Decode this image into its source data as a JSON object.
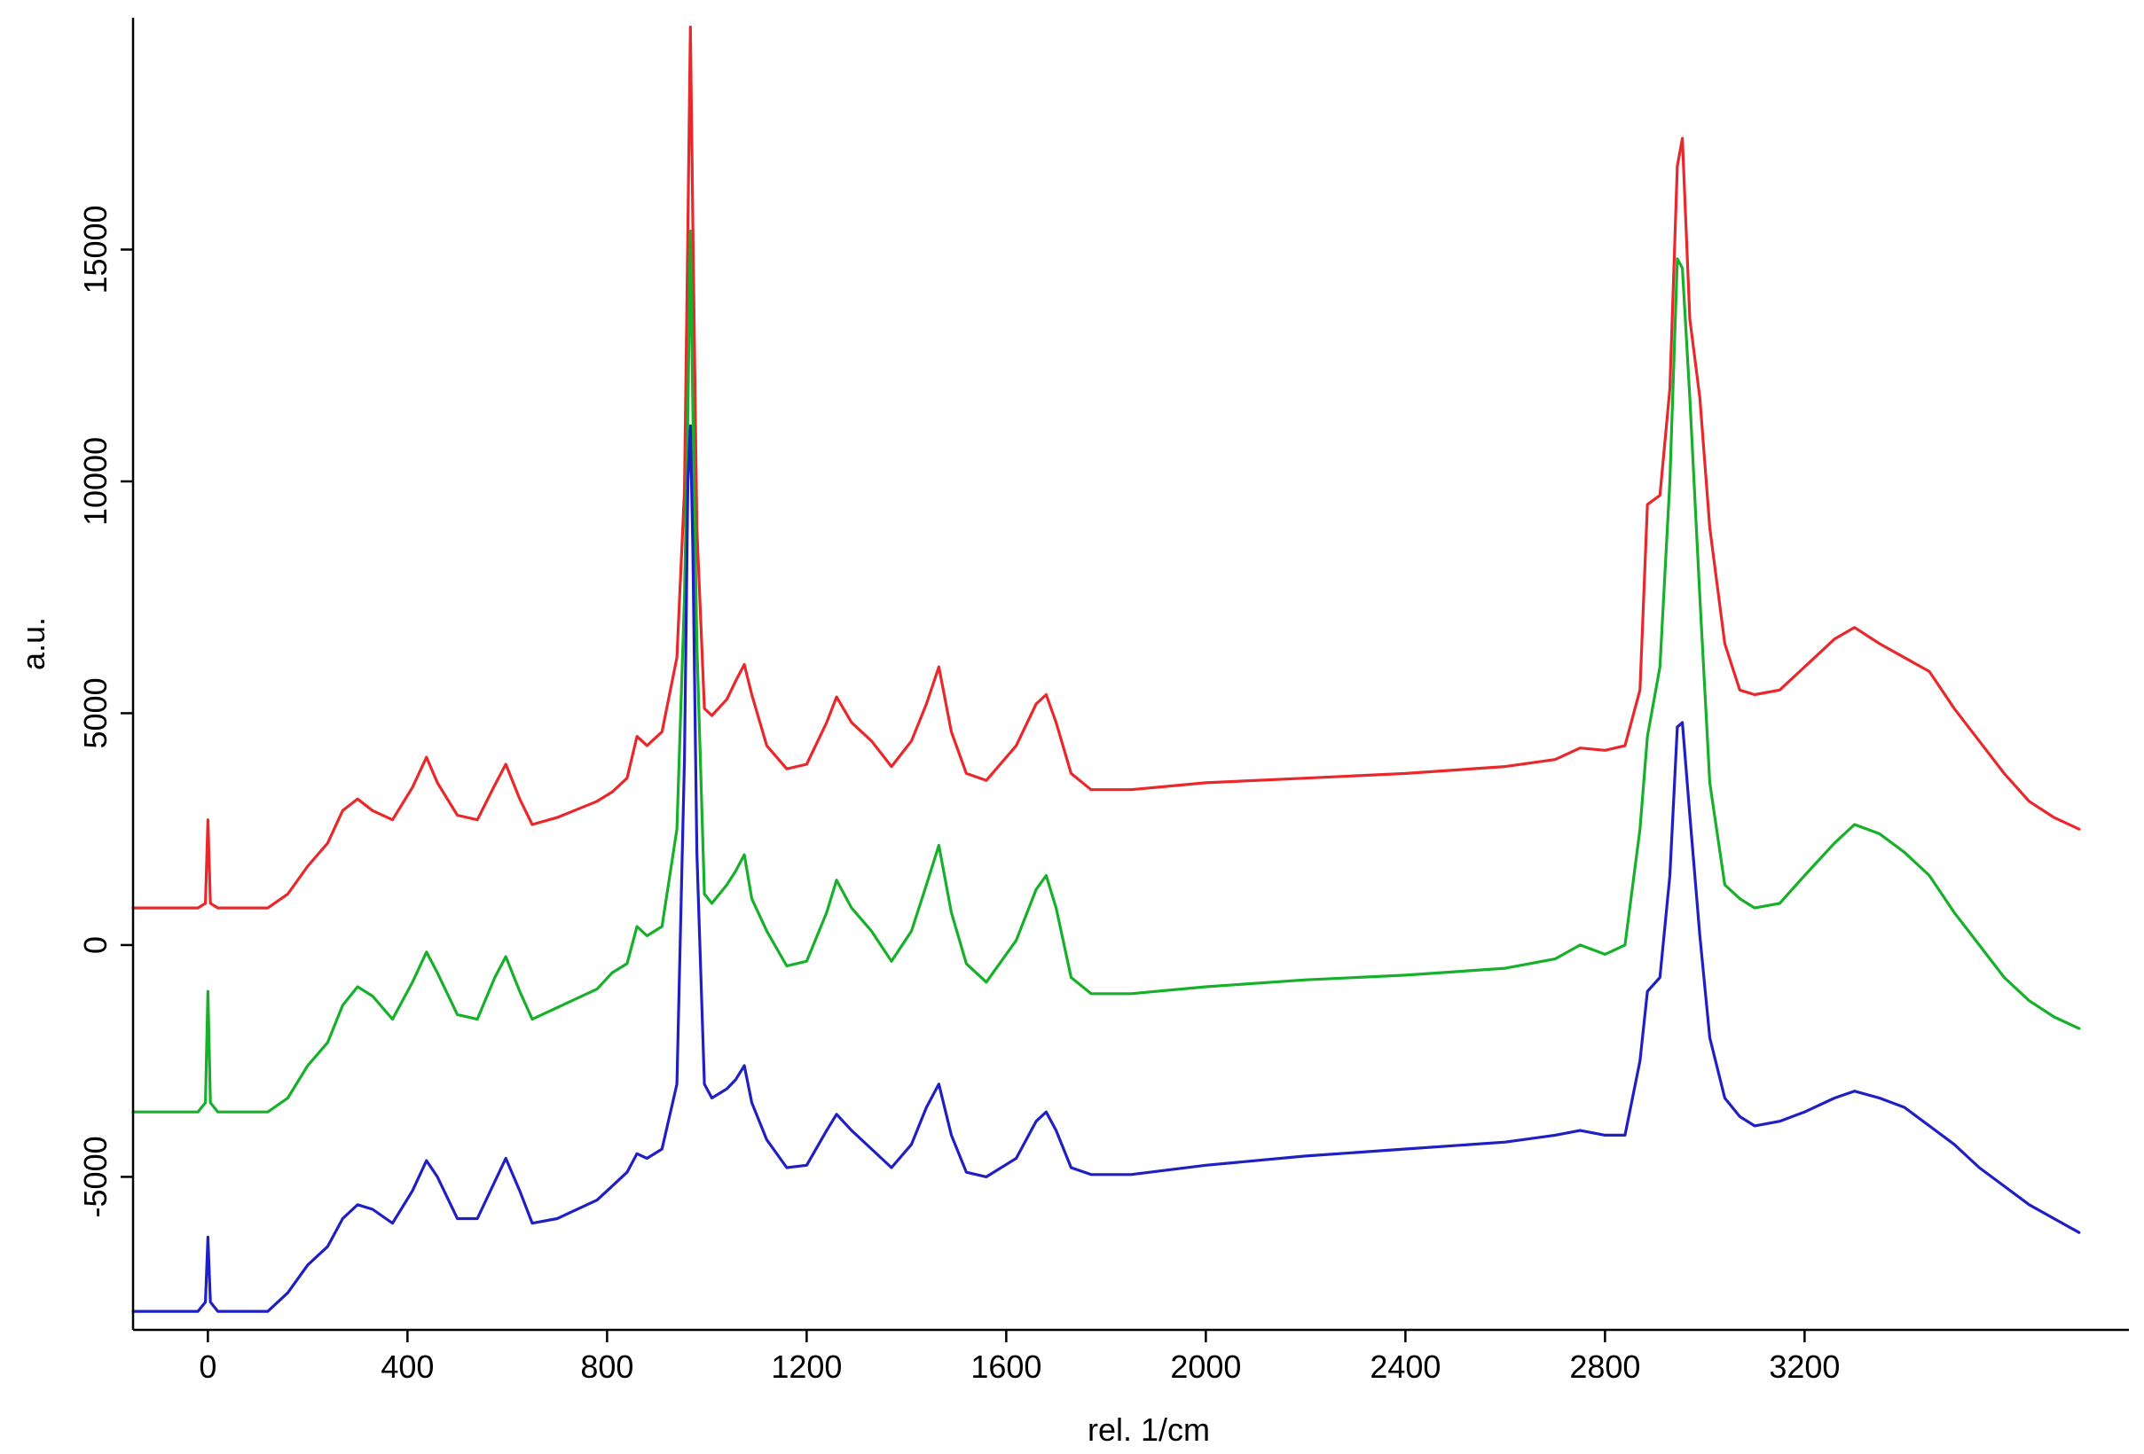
{
  "chart_data": {
    "type": "line",
    "title": "",
    "xlabel": "rel. 1/cm",
    "ylabel": "a.u.",
    "xlim": [
      -150,
      3850
    ],
    "ylim": [
      -8300,
      20000
    ],
    "x_ticks": [
      0,
      400,
      800,
      1200,
      1600,
      2000,
      2400,
      2800,
      3200
    ],
    "y_ticks": [
      -5000,
      0,
      5000,
      10000,
      15000
    ],
    "grid": false,
    "legend": "none",
    "series": [
      {
        "color": "#e8282b",
        "points": [
          [
            -150,
            800
          ],
          [
            -20,
            800
          ],
          [
            -5,
            900
          ],
          [
            0,
            2700
          ],
          [
            5,
            900
          ],
          [
            20,
            800
          ],
          [
            120,
            800
          ],
          [
            160,
            1100
          ],
          [
            200,
            1700
          ],
          [
            240,
            2200
          ],
          [
            270,
            2900
          ],
          [
            300,
            3150
          ],
          [
            330,
            2900
          ],
          [
            370,
            2700
          ],
          [
            410,
            3400
          ],
          [
            438,
            4050
          ],
          [
            460,
            3500
          ],
          [
            500,
            2800
          ],
          [
            540,
            2700
          ],
          [
            575,
            3450
          ],
          [
            597,
            3900
          ],
          [
            625,
            3150
          ],
          [
            650,
            2600
          ],
          [
            700,
            2750
          ],
          [
            780,
            3100
          ],
          [
            810,
            3300
          ],
          [
            840,
            3600
          ],
          [
            860,
            4500
          ],
          [
            880,
            4300
          ],
          [
            910,
            4600
          ],
          [
            940,
            6200
          ],
          [
            955,
            9800
          ],
          [
            962,
            15500
          ],
          [
            967,
            19800
          ],
          [
            972,
            15500
          ],
          [
            980,
            9000
          ],
          [
            995,
            5100
          ],
          [
            1010,
            4950
          ],
          [
            1040,
            5300
          ],
          [
            1058,
            5700
          ],
          [
            1075,
            6050
          ],
          [
            1090,
            5400
          ],
          [
            1120,
            4300
          ],
          [
            1160,
            3800
          ],
          [
            1200,
            3900
          ],
          [
            1240,
            4800
          ],
          [
            1260,
            5350
          ],
          [
            1290,
            4800
          ],
          [
            1330,
            4400
          ],
          [
            1370,
            3850
          ],
          [
            1410,
            4400
          ],
          [
            1440,
            5200
          ],
          [
            1465,
            6000
          ],
          [
            1490,
            4600
          ],
          [
            1520,
            3700
          ],
          [
            1560,
            3550
          ],
          [
            1620,
            4300
          ],
          [
            1660,
            5200
          ],
          [
            1680,
            5400
          ],
          [
            1700,
            4800
          ],
          [
            1730,
            3700
          ],
          [
            1770,
            3350
          ],
          [
            1850,
            3350
          ],
          [
            2000,
            3500
          ],
          [
            2200,
            3600
          ],
          [
            2400,
            3700
          ],
          [
            2600,
            3850
          ],
          [
            2700,
            4000
          ],
          [
            2750,
            4250
          ],
          [
            2800,
            4200
          ],
          [
            2840,
            4300
          ],
          [
            2870,
            5500
          ],
          [
            2885,
            9500
          ],
          [
            2910,
            9700
          ],
          [
            2930,
            12000
          ],
          [
            2945,
            16800
          ],
          [
            2955,
            17400
          ],
          [
            2970,
            13500
          ],
          [
            2990,
            11800
          ],
          [
            3010,
            9000
          ],
          [
            3040,
            6500
          ],
          [
            3070,
            5500
          ],
          [
            3100,
            5400
          ],
          [
            3150,
            5500
          ],
          [
            3200,
            6000
          ],
          [
            3260,
            6600
          ],
          [
            3300,
            6850
          ],
          [
            3350,
            6500
          ],
          [
            3400,
            6200
          ],
          [
            3450,
            5900
          ],
          [
            3500,
            5100
          ],
          [
            3550,
            4400
          ],
          [
            3600,
            3700
          ],
          [
            3650,
            3100
          ],
          [
            3700,
            2750
          ],
          [
            3750,
            2500
          ]
        ]
      },
      {
        "color": "#17b02a",
        "points": [
          [
            -150,
            -3600
          ],
          [
            -20,
            -3600
          ],
          [
            -5,
            -3400
          ],
          [
            0,
            -1000
          ],
          [
            5,
            -3400
          ],
          [
            20,
            -3600
          ],
          [
            120,
            -3600
          ],
          [
            160,
            -3300
          ],
          [
            200,
            -2600
          ],
          [
            240,
            -2100
          ],
          [
            270,
            -1300
          ],
          [
            300,
            -900
          ],
          [
            330,
            -1100
          ],
          [
            370,
            -1600
          ],
          [
            410,
            -800
          ],
          [
            438,
            -150
          ],
          [
            460,
            -600
          ],
          [
            500,
            -1500
          ],
          [
            540,
            -1600
          ],
          [
            575,
            -700
          ],
          [
            597,
            -250
          ],
          [
            625,
            -1000
          ],
          [
            650,
            -1600
          ],
          [
            700,
            -1350
          ],
          [
            780,
            -950
          ],
          [
            810,
            -600
          ],
          [
            840,
            -400
          ],
          [
            860,
            400
          ],
          [
            880,
            200
          ],
          [
            910,
            400
          ],
          [
            940,
            2500
          ],
          [
            955,
            7500
          ],
          [
            962,
            11500
          ],
          [
            967,
            15400
          ],
          [
            972,
            11500
          ],
          [
            980,
            6500
          ],
          [
            995,
            1100
          ],
          [
            1010,
            900
          ],
          [
            1040,
            1300
          ],
          [
            1058,
            1600
          ],
          [
            1075,
            1950
          ],
          [
            1090,
            1000
          ],
          [
            1120,
            300
          ],
          [
            1160,
            -450
          ],
          [
            1200,
            -350
          ],
          [
            1240,
            700
          ],
          [
            1260,
            1400
          ],
          [
            1290,
            800
          ],
          [
            1330,
            300
          ],
          [
            1370,
            -350
          ],
          [
            1410,
            300
          ],
          [
            1440,
            1300
          ],
          [
            1465,
            2150
          ],
          [
            1490,
            700
          ],
          [
            1520,
            -400
          ],
          [
            1560,
            -800
          ],
          [
            1620,
            100
          ],
          [
            1660,
            1200
          ],
          [
            1680,
            1500
          ],
          [
            1700,
            800
          ],
          [
            1730,
            -700
          ],
          [
            1770,
            -1050
          ],
          [
            1850,
            -1050
          ],
          [
            2000,
            -900
          ],
          [
            2200,
            -750
          ],
          [
            2400,
            -650
          ],
          [
            2600,
            -500
          ],
          [
            2700,
            -300
          ],
          [
            2750,
            0
          ],
          [
            2800,
            -200
          ],
          [
            2840,
            0
          ],
          [
            2870,
            2500
          ],
          [
            2885,
            4500
          ],
          [
            2910,
            6000
          ],
          [
            2930,
            10000
          ],
          [
            2945,
            14800
          ],
          [
            2955,
            14600
          ],
          [
            2970,
            11800
          ],
          [
            2990,
            7500
          ],
          [
            3010,
            3500
          ],
          [
            3040,
            1300
          ],
          [
            3070,
            1000
          ],
          [
            3100,
            800
          ],
          [
            3150,
            900
          ],
          [
            3200,
            1500
          ],
          [
            3260,
            2200
          ],
          [
            3300,
            2600
          ],
          [
            3350,
            2400
          ],
          [
            3400,
            2000
          ],
          [
            3450,
            1500
          ],
          [
            3500,
            700
          ],
          [
            3550,
            0
          ],
          [
            3600,
            -700
          ],
          [
            3650,
            -1200
          ],
          [
            3700,
            -1550
          ],
          [
            3750,
            -1800
          ]
        ]
      },
      {
        "color": "#1f1fc4",
        "points": [
          [
            -150,
            -7900
          ],
          [
            -20,
            -7900
          ],
          [
            -5,
            -7700
          ],
          [
            0,
            -6300
          ],
          [
            5,
            -7700
          ],
          [
            20,
            -7900
          ],
          [
            120,
            -7900
          ],
          [
            160,
            -7500
          ],
          [
            200,
            -6900
          ],
          [
            240,
            -6500
          ],
          [
            270,
            -5900
          ],
          [
            300,
            -5600
          ],
          [
            330,
            -5700
          ],
          [
            370,
            -6000
          ],
          [
            410,
            -5300
          ],
          [
            438,
            -4650
          ],
          [
            460,
            -5000
          ],
          [
            500,
            -5900
          ],
          [
            540,
            -5900
          ],
          [
            575,
            -5100
          ],
          [
            597,
            -4600
          ],
          [
            625,
            -5300
          ],
          [
            650,
            -6000
          ],
          [
            700,
            -5900
          ],
          [
            780,
            -5500
          ],
          [
            810,
            -5200
          ],
          [
            840,
            -4900
          ],
          [
            860,
            -4500
          ],
          [
            880,
            -4600
          ],
          [
            910,
            -4400
          ],
          [
            940,
            -3000
          ],
          [
            955,
            4000
          ],
          [
            962,
            10000
          ],
          [
            967,
            11200
          ],
          [
            972,
            8500
          ],
          [
            980,
            2000
          ],
          [
            995,
            -3000
          ],
          [
            1010,
            -3300
          ],
          [
            1040,
            -3100
          ],
          [
            1058,
            -2900
          ],
          [
            1075,
            -2600
          ],
          [
            1090,
            -3400
          ],
          [
            1120,
            -4200
          ],
          [
            1160,
            -4800
          ],
          [
            1200,
            -4750
          ],
          [
            1240,
            -4000
          ],
          [
            1260,
            -3650
          ],
          [
            1290,
            -4000
          ],
          [
            1330,
            -4400
          ],
          [
            1370,
            -4800
          ],
          [
            1410,
            -4300
          ],
          [
            1440,
            -3500
          ],
          [
            1465,
            -3000
          ],
          [
            1490,
            -4100
          ],
          [
            1520,
            -4900
          ],
          [
            1560,
            -5000
          ],
          [
            1620,
            -4600
          ],
          [
            1660,
            -3800
          ],
          [
            1680,
            -3600
          ],
          [
            1700,
            -4000
          ],
          [
            1730,
            -4800
          ],
          [
            1770,
            -4950
          ],
          [
            1850,
            -4950
          ],
          [
            2000,
            -4750
          ],
          [
            2200,
            -4550
          ],
          [
            2400,
            -4400
          ],
          [
            2600,
            -4250
          ],
          [
            2700,
            -4100
          ],
          [
            2750,
            -4000
          ],
          [
            2800,
            -4100
          ],
          [
            2840,
            -4100
          ],
          [
            2870,
            -2500
          ],
          [
            2885,
            -1000
          ],
          [
            2910,
            -700
          ],
          [
            2930,
            1500
          ],
          [
            2945,
            4700
          ],
          [
            2955,
            4800
          ],
          [
            2970,
            2800
          ],
          [
            2990,
            200
          ],
          [
            3010,
            -2000
          ],
          [
            3040,
            -3300
          ],
          [
            3070,
            -3700
          ],
          [
            3100,
            -3900
          ],
          [
            3150,
            -3800
          ],
          [
            3200,
            -3600
          ],
          [
            3260,
            -3300
          ],
          [
            3300,
            -3150
          ],
          [
            3350,
            -3300
          ],
          [
            3400,
            -3500
          ],
          [
            3450,
            -3900
          ],
          [
            3500,
            -4300
          ],
          [
            3550,
            -4800
          ],
          [
            3600,
            -5200
          ],
          [
            3650,
            -5600
          ],
          [
            3700,
            -5900
          ],
          [
            3750,
            -6200
          ]
        ]
      }
    ]
  }
}
